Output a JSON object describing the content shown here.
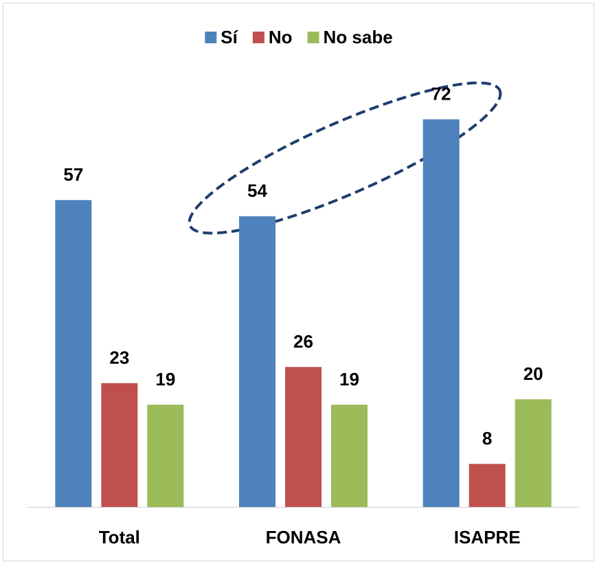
{
  "chart_data": {
    "type": "bar",
    "categories": [
      "Total",
      "FONASA",
      "ISAPRE"
    ],
    "series": [
      {
        "name": "Sí",
        "color": "#4f81bd",
        "values": [
          57,
          54,
          72
        ]
      },
      {
        "name": "No",
        "color": "#c0504d",
        "values": [
          23,
          26,
          8
        ]
      },
      {
        "name": "No sabe",
        "color": "#9bbb59",
        "values": [
          19,
          19,
          20
        ]
      }
    ],
    "ylim": [
      0,
      80
    ],
    "legend": "top"
  }
}
